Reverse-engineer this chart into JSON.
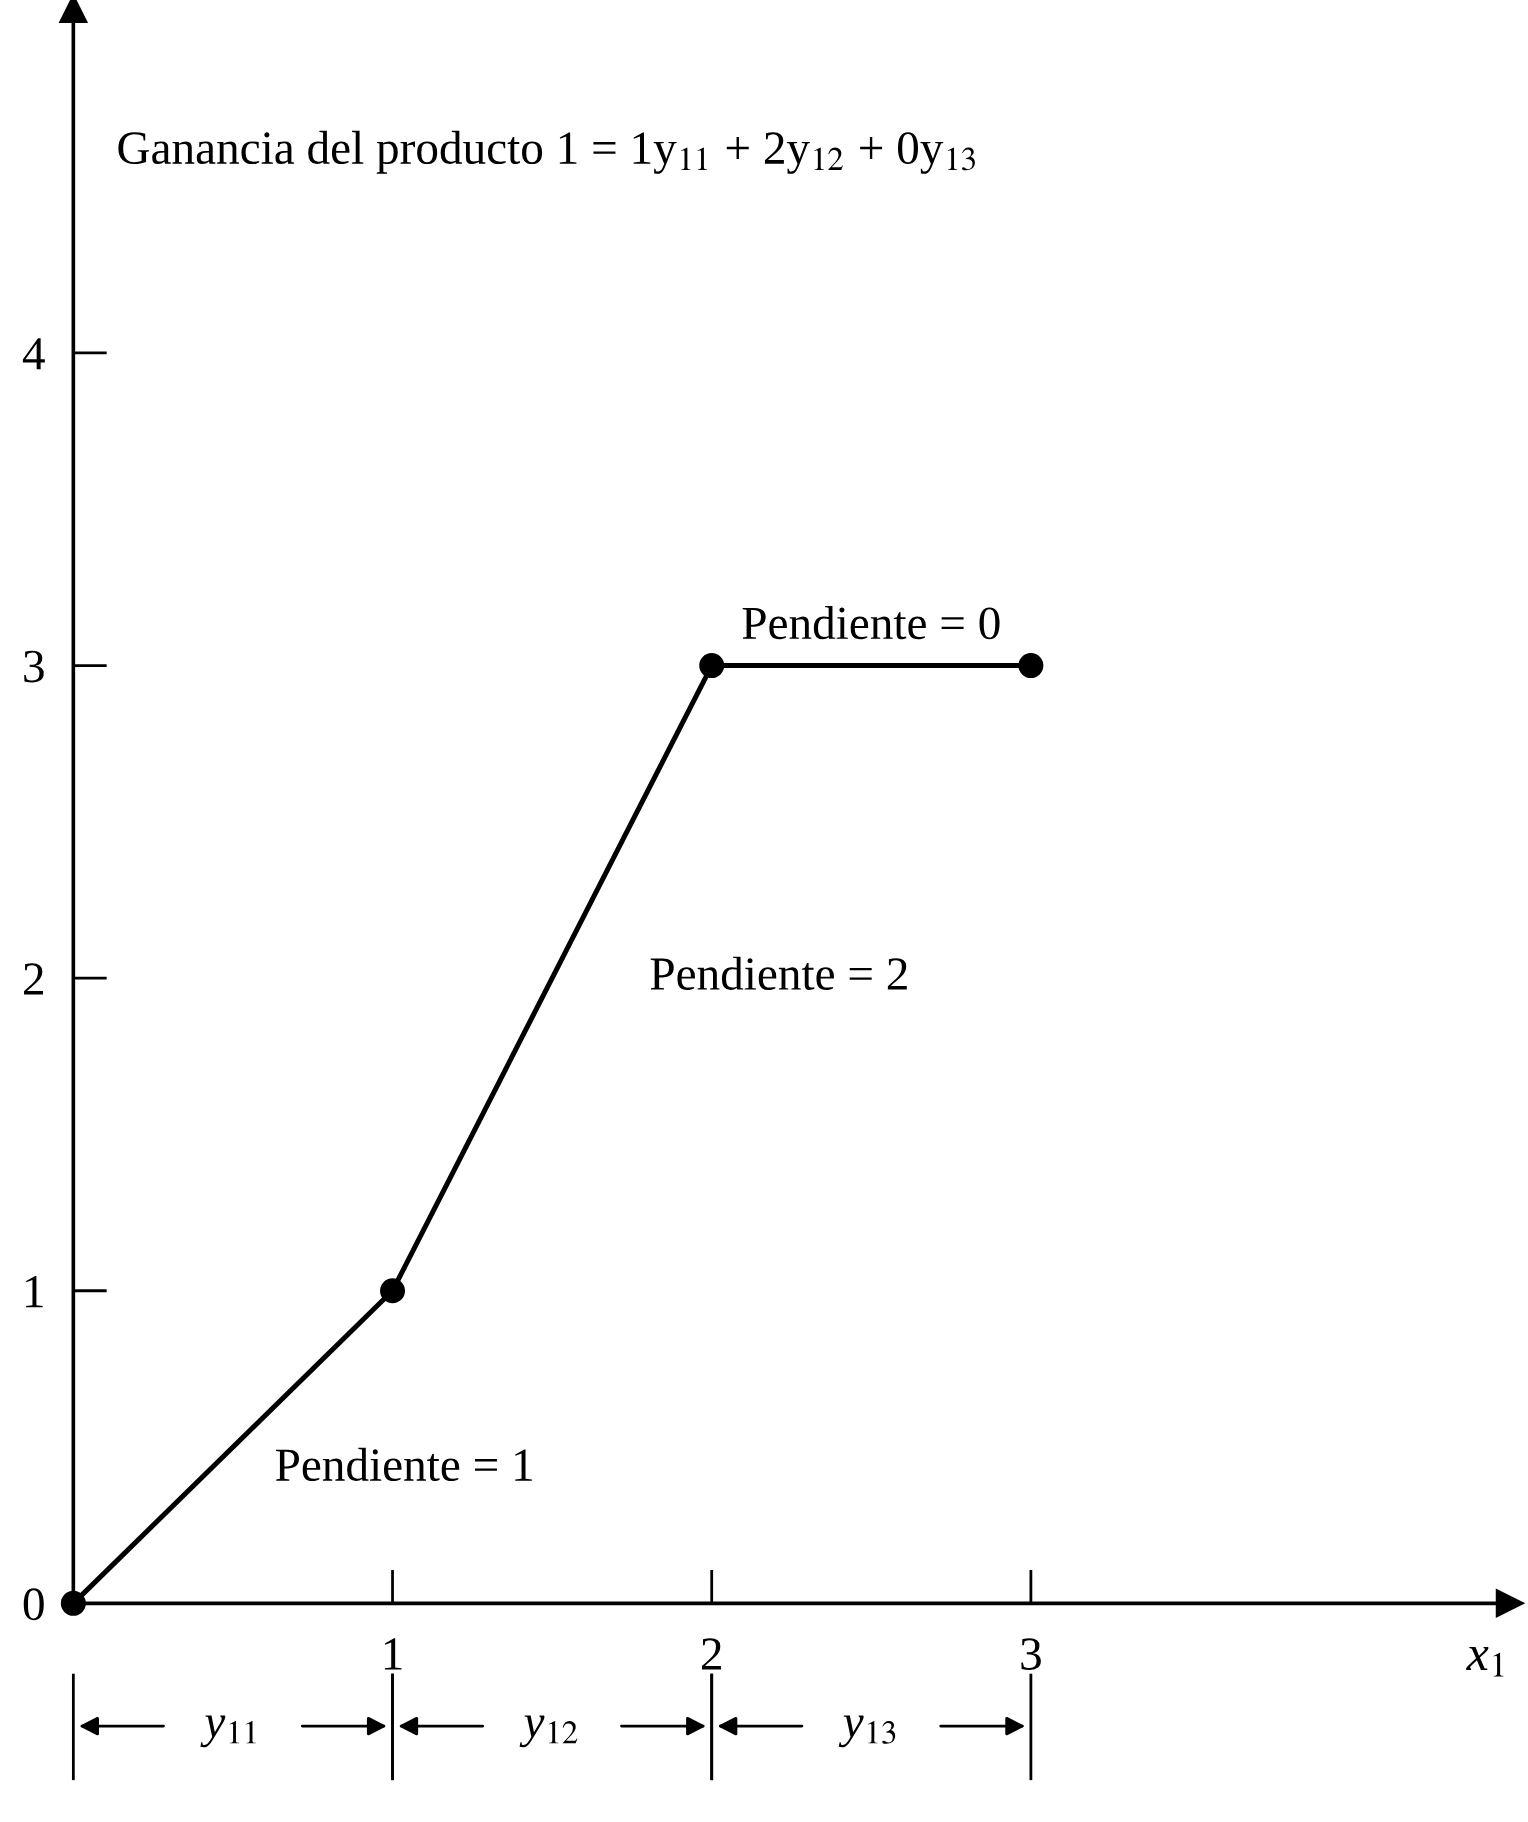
{
  "chart_data": {
    "type": "line",
    "title": "Ganancia del producto 1 = 1y$_{11}$ + 2y$_{12}$ + 0y$_{13}$",
    "xlabel": "x$_{1}$",
    "x": [
      0,
      1,
      2,
      3
    ],
    "series": [
      {
        "color": "#000000",
        "values": [
          0,
          1,
          3,
          3
        ]
      }
    ],
    "marker": "circle",
    "line_style": "solid",
    "grid": false,
    "xlim": [
      0,
      4.5
    ],
    "ylim": [
      0,
      5.1
    ],
    "xticks": [
      1,
      2,
      3
    ],
    "yticks": [
      0,
      1,
      2,
      3,
      4
    ],
    "annotations": [
      "Pendiente = 1",
      "Pendiente = 2",
      "Pendiente = 0",
      "y$_{11}$",
      "y$_{12}$",
      "y$_{13}$"
    ]
  }
}
